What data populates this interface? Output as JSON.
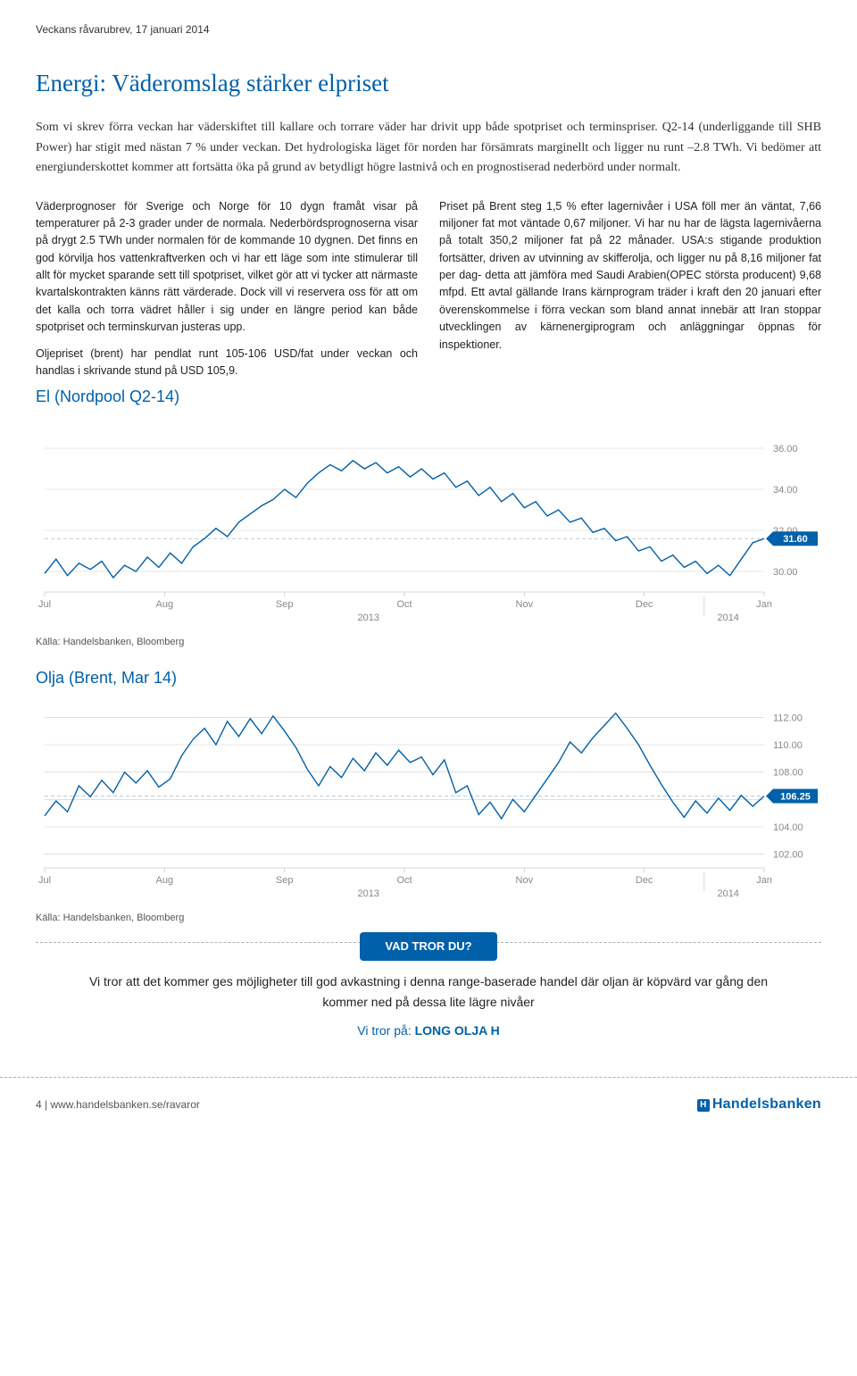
{
  "header": {
    "brevLabel": "Veckans råvarubrev, 17 januari 2014"
  },
  "article": {
    "title": "Energi: Väderomslag stärker elpriset",
    "intro": "Som vi skrev förra veckan har väderskiftet till kallare och torrare väder har drivit upp både spotpriset och terminspriser. Q2-14 (underliggande till SHB Power) har stigit med nästan 7 % under veckan. Det hydrologiska läget för norden har försämrats marginellt och ligger nu runt –2.8 TWh. Vi bedömer att energiunderskottet kommer att fortsätta öka på grund av betydligt högre lastnivå och en prognostiserad nederbörd under normalt.",
    "colLeft": "Väderprognoser för Sverige och Norge för 10 dygn framåt visar på temperaturer på 2-3 grader under de normala. Nederbördsprognoserna visar på drygt 2.5 TWh under normalen för de kommande 10 dygnen. Det finns en god körvilja hos vattenkraftverken och vi har ett läge som inte stimulerar till allt för mycket sparande sett till spotpriset, vilket gör att vi tycker att närmaste kvartalskontrakten känns rätt värderade. Dock vill vi reservera oss för att om det kalla och torra vädret håller i sig under en längre period kan både spotpriset och terminskurvan justeras upp.",
    "colLeft2": "Oljepriset (brent) har pendlat runt 105-106 USD/fat under veckan och handlas i skrivande stund på USD 105,9.",
    "colRight": "Priset på Brent steg 1,5 % efter lagernivåer i USA föll mer än väntat, 7,66 miljoner fat mot väntade 0,67 miljoner. Vi har nu har de lägsta lagernivåerna på totalt 350,2 miljoner fat på 22 månader. USA:s stigande produktion fortsätter, driven av utvinning av skifferolja, och ligger nu på 8,16 miljoner fat per dag- detta att jämföra med Saudi Arabien(OPEC största producent) 9,68 mfpd. Ett avtal gällande Irans kärnprogram träder i kraft den 20 januari efter överenskommelse i förra veckan som bland annat innebär att Iran stoppar utvecklingen av kärnenergiprogram och anläggningar öppnas för inspektioner.",
    "subhead1": "El (Nordpool Q2-14)",
    "subhead2": "Olja (Brent, Mar 14)"
  },
  "source": "Källa: Handelsbanken, Bloomberg",
  "chart_el": {
    "type": "line",
    "x_labels": [
      "Jul",
      "Aug",
      "Sep",
      "Oct",
      "Nov",
      "Dec",
      "Jan"
    ],
    "x_year_center": "2013",
    "x_year_right": "2014",
    "ylim": [
      29,
      37
    ],
    "yticks": [
      30.0,
      32.0,
      34.0,
      36.0
    ],
    "last_value": 31.6,
    "line_color": "#0060a9",
    "line_width": 1.4,
    "grid_color": "#cccccc",
    "last_dashed_color": "#b5cadc",
    "background_color": "#ffffff",
    "series": [
      29.9,
      30.6,
      29.8,
      30.4,
      30.1,
      30.5,
      29.7,
      30.3,
      30.0,
      30.7,
      30.2,
      30.9,
      30.4,
      31.2,
      31.6,
      32.1,
      31.7,
      32.4,
      32.8,
      33.2,
      33.5,
      34.0,
      33.6,
      34.3,
      34.8,
      35.2,
      34.9,
      35.4,
      35.0,
      35.3,
      34.8,
      35.1,
      34.6,
      35.0,
      34.5,
      34.8,
      34.1,
      34.4,
      33.7,
      34.1,
      33.4,
      33.8,
      33.1,
      33.4,
      32.7,
      33.0,
      32.4,
      32.6,
      31.9,
      32.1,
      31.5,
      31.7,
      31.0,
      31.2,
      30.5,
      30.8,
      30.2,
      30.5,
      29.9,
      30.3,
      29.8,
      30.6,
      31.4,
      31.6
    ]
  },
  "chart_oil": {
    "type": "line",
    "x_labels": [
      "Jul",
      "Aug",
      "Sep",
      "Oct",
      "Nov",
      "Dec",
      "Jan"
    ],
    "x_year_center": "2013",
    "x_year_right": "2014",
    "ylim": [
      101,
      113
    ],
    "yticks": [
      102.0,
      104.0,
      106.0,
      108.0,
      110.0,
      112.0
    ],
    "last_value": 106.25,
    "line_color": "#0060a9",
    "line_width": 1.4,
    "grid_color": "#cccccc",
    "last_dashed_color": "#b5cadc",
    "background_color": "#ffffff",
    "series": [
      104.8,
      105.9,
      105.1,
      107.0,
      106.2,
      107.4,
      106.5,
      108.0,
      107.2,
      108.1,
      106.9,
      107.5,
      109.2,
      110.4,
      111.2,
      110.0,
      111.7,
      110.6,
      111.9,
      110.8,
      112.1,
      111.0,
      109.8,
      108.2,
      107.0,
      108.4,
      107.6,
      109.0,
      108.1,
      109.4,
      108.5,
      109.6,
      108.7,
      109.1,
      107.8,
      108.9,
      106.5,
      107.0,
      104.9,
      105.8,
      104.6,
      106.0,
      105.1,
      106.3,
      107.5,
      108.7,
      110.2,
      109.4,
      110.5,
      111.4,
      112.3,
      111.2,
      110.0,
      108.5,
      107.1,
      105.8,
      104.7,
      105.9,
      105.0,
      106.1,
      105.2,
      106.3,
      105.5,
      106.25
    ]
  },
  "callout": {
    "pill": "VAD TROR DU?",
    "text": "Vi tror att det kommer ges möjligheter till god avkastning i denna range-baserade handel där oljan är köpvärd var gång den kommer ned på dessa lite lägre nivåer",
    "recPrefix": "Vi tror på: ",
    "recLabel": "LONG OLJA H"
  },
  "footer": {
    "pageLabel": "4 | www.handelsbanken.se/ravaror",
    "logo": "Handelsbanken"
  }
}
